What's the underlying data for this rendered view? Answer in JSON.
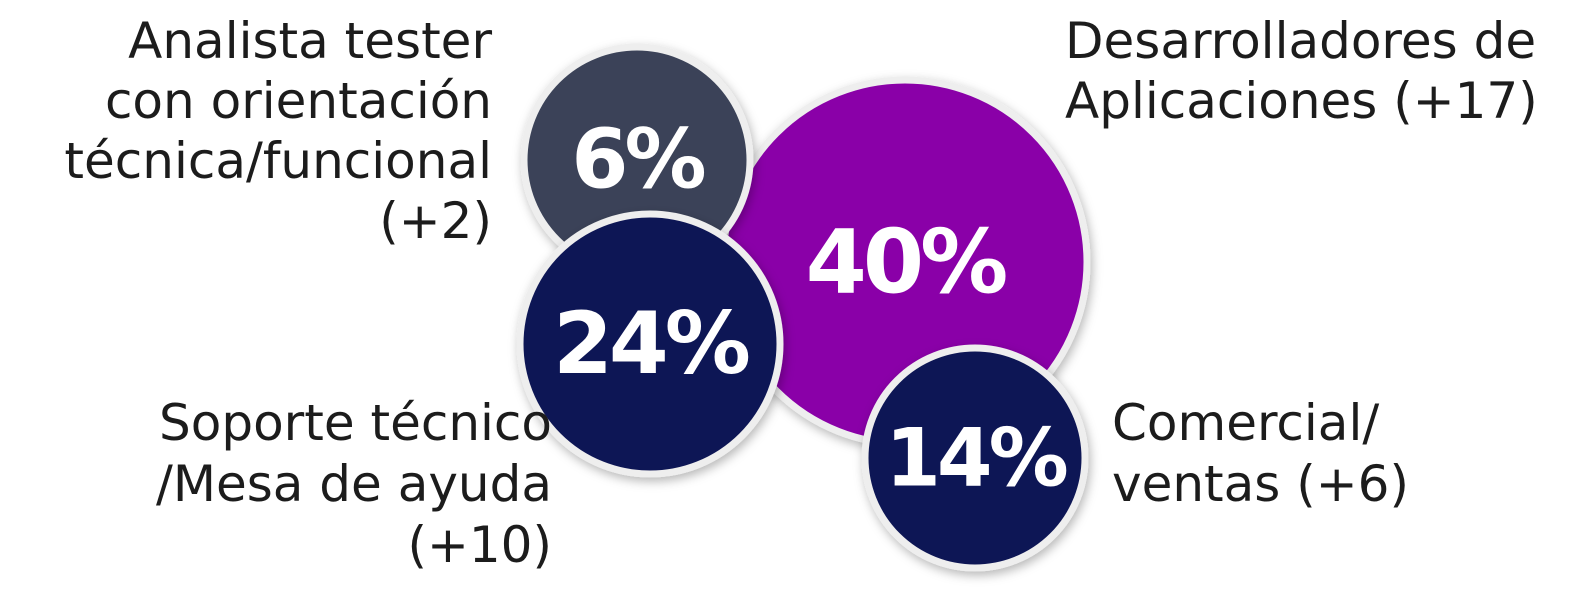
{
  "chart_data": {
    "type": "bubble",
    "title": "",
    "grid": false,
    "legend": "none",
    "series": [
      {
        "key": "desarrolladores",
        "value": 40,
        "value_label": "40%",
        "label_lines": [
          "Desarrolladores de",
          "Aplicaciones (+17)"
        ],
        "color": "#8a00a8"
      },
      {
        "key": "analista",
        "value": 6,
        "value_label": "6%",
        "label_lines": [
          "Analista tester",
          "con orientación",
          "técnica/funcional",
          "(+2)"
        ],
        "color": "#3b4358"
      },
      {
        "key": "soporte",
        "value": 24,
        "value_label": "24%",
        "label_lines": [
          "Soporte técnico",
          "/Mesa de ayuda",
          "(+10)"
        ],
        "color": "#0f1654"
      },
      {
        "key": "comercial",
        "value": 14,
        "value_label": "14%",
        "label_lines": [
          "Comercial/",
          "ventas (+6)"
        ],
        "color": "#0f1654"
      }
    ]
  }
}
